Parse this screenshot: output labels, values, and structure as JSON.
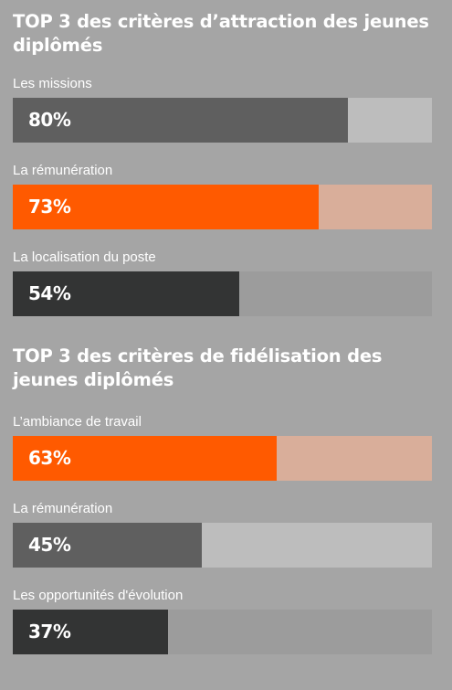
{
  "chart_data": [
    {
      "type": "bar",
      "title": "TOP 3 des critères d’attraction des jeunes diplômés",
      "categories": [
        "Les missions",
        "La rémunération",
        "La localisation du poste"
      ],
      "values": [
        80,
        73,
        54
      ],
      "value_labels": [
        "80%",
        "73%",
        "54%"
      ],
      "xlim": [
        0,
        100
      ],
      "colors": [
        {
          "fill": "#5f5f5f",
          "track": "#bdbdbd"
        },
        {
          "fill": "#ff5a00",
          "track": "#d9ae9a"
        },
        {
          "fill": "#333434",
          "track": "#9c9c9c"
        }
      ]
    },
    {
      "type": "bar",
      "title": "TOP 3 des critères de fidélisation des jeunes diplômés",
      "categories": [
        "L’ambiance de travail",
        "La rémunération",
        "Les opportunités d'évolution"
      ],
      "values": [
        63,
        45,
        37
      ],
      "value_labels": [
        "63%",
        "45%",
        "37%"
      ],
      "xlim": [
        0,
        100
      ],
      "colors": [
        {
          "fill": "#ff5a00",
          "track": "#d9ae9a"
        },
        {
          "fill": "#5f5f5f",
          "track": "#bdbdbd"
        },
        {
          "fill": "#333434",
          "track": "#9c9c9c"
        }
      ]
    }
  ]
}
